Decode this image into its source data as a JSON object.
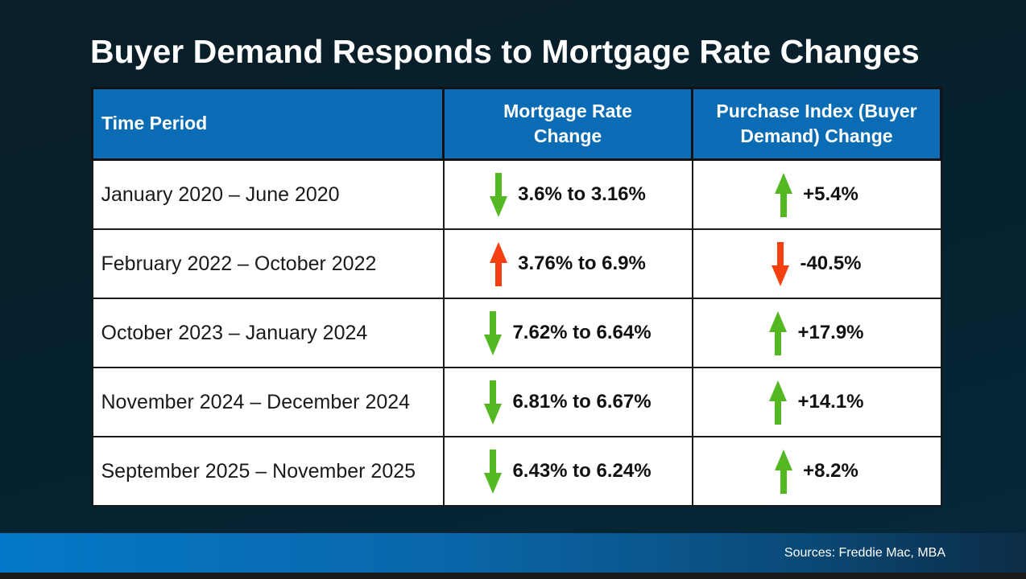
{
  "slide": {
    "title": "Buyer Demand Responds to Mortgage Rate Changes",
    "sources": "Sources: Freddie Mac, MBA"
  },
  "colors": {
    "background_dark": "#05222f",
    "header_blue": "#0b6cb6",
    "footer_blue_left": "#0478c8",
    "footer_blue_right": "#0c2c46",
    "positive_green": "#53b822",
    "negative_red": "#f4400e"
  },
  "table": {
    "headers": [
      "Time Period",
      "Mortgage Rate\nChange",
      "Purchase Index (Buyer\nDemand) Change"
    ],
    "rows": [
      {
        "period": "January 2020 – June 2020",
        "rate": {
          "direction": "down",
          "color": "#53b822",
          "value": "3.6% to 3.16%"
        },
        "index": {
          "direction": "up",
          "color": "#53b822",
          "value": "+5.4%"
        }
      },
      {
        "period": "February 2022 – October 2022",
        "rate": {
          "direction": "up",
          "color": "#f4400e",
          "value": "3.76% to 6.9%"
        },
        "index": {
          "direction": "down",
          "color": "#f4400e",
          "value": "-40.5%"
        }
      },
      {
        "period": "October 2023 – January 2024",
        "rate": {
          "direction": "down",
          "color": "#53b822",
          "value": "7.62% to 6.64%"
        },
        "index": {
          "direction": "up",
          "color": "#53b822",
          "value": "+17.9%"
        }
      },
      {
        "period": "November 2024 – December 2024",
        "rate": {
          "direction": "down",
          "color": "#53b822",
          "value": "6.81% to 6.67%"
        },
        "index": {
          "direction": "up",
          "color": "#53b822",
          "value": "+14.1%"
        }
      },
      {
        "period": "September 2025 – November 2025",
        "rate": {
          "direction": "down",
          "color": "#53b822",
          "value": "6.43% to 6.24%"
        },
        "index": {
          "direction": "up",
          "color": "#53b822",
          "value": "+8.2%"
        }
      }
    ]
  },
  "chart_data": {
    "type": "table",
    "title": "Buyer Demand Responds to Mortgage Rate Changes",
    "columns": [
      "Time Period",
      "Mortgage Rate Change",
      "Purchase Index (Buyer Demand) Change"
    ],
    "rows": [
      {
        "time_period": "January 2020 – June 2020",
        "mortgage_rate_change": "down: 3.6% to 3.16%",
        "purchase_index_change": "up: +5.4%"
      },
      {
        "time_period": "February 2022 – October 2022",
        "mortgage_rate_change": "up: 3.76% to 6.9%",
        "purchase_index_change": "down: -40.5%"
      },
      {
        "time_period": "October 2023 – January 2024",
        "mortgage_rate_change": "down: 7.62% to 6.64%",
        "purchase_index_change": "up: +17.9%"
      },
      {
        "time_period": "November 2024 – December 2024",
        "mortgage_rate_change": "down: 6.81% to 6.67%",
        "purchase_index_change": "up: +14.1%"
      },
      {
        "time_period": "September 2025 – November 2025",
        "mortgage_rate_change": "down: 6.43% to 6.24%",
        "purchase_index_change": "up: +8.2%"
      }
    ],
    "sources": "Sources: Freddie Mac, MBA"
  }
}
